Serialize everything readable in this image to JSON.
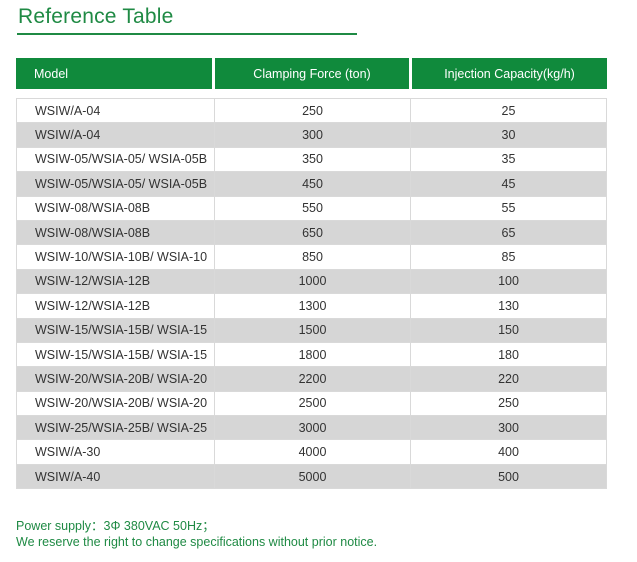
{
  "title": "Reference Table",
  "columns": [
    "Model",
    "Clamping Force (ton)",
    "Injection Capacity(kg/h)"
  ],
  "rows": [
    {
      "model": "WSIW/A-04",
      "clamping": "250",
      "capacity": "25"
    },
    {
      "model": "WSIW/A-04",
      "clamping": "300",
      "capacity": "30"
    },
    {
      "model": "WSIW-05/WSIA-05/ WSIA-05B",
      "clamping": "350",
      "capacity": "35"
    },
    {
      "model": "WSIW-05/WSIA-05/ WSIA-05B",
      "clamping": "450",
      "capacity": "45"
    },
    {
      "model": "WSIW-08/WSIA-08B",
      "clamping": "550",
      "capacity": "55"
    },
    {
      "model": "WSIW-08/WSIA-08B",
      "clamping": "650",
      "capacity": "65"
    },
    {
      "model": "WSIW-10/WSIA-10B/ WSIA-10",
      "clamping": "850",
      "capacity": "85"
    },
    {
      "model": "WSIW-12/WSIA-12B",
      "clamping": "1000",
      "capacity": "100"
    },
    {
      "model": "WSIW-12/WSIA-12B",
      "clamping": "1300",
      "capacity": "130"
    },
    {
      "model": "WSIW-15/WSIA-15B/ WSIA-15",
      "clamping": "1500",
      "capacity": "150"
    },
    {
      "model": "WSIW-15/WSIA-15B/ WSIA-15",
      "clamping": "1800",
      "capacity": "180"
    },
    {
      "model": "WSIW-20/WSIA-20B/ WSIA-20",
      "clamping": "2200",
      "capacity": "220"
    },
    {
      "model": "WSIW-20/WSIA-20B/ WSIA-20",
      "clamping": "2500",
      "capacity": "250"
    },
    {
      "model": "WSIW-25/WSIA-25B/ WSIA-25",
      "clamping": "3000",
      "capacity": "300"
    },
    {
      "model": "WSIW/A-30",
      "clamping": "4000",
      "capacity": "400"
    },
    {
      "model": "WSIW/A-40",
      "clamping": "5000",
      "capacity": "500"
    }
  ],
  "notes": {
    "power": "Power supply：3Φ 380VAC 50Hz；",
    "disclaimer": "We reserve the right to change specifications without prior notice."
  },
  "colors": {
    "accent": "#1f8a44",
    "header_bg": "#108a3c",
    "alt_row": "#d6d6d6"
  }
}
